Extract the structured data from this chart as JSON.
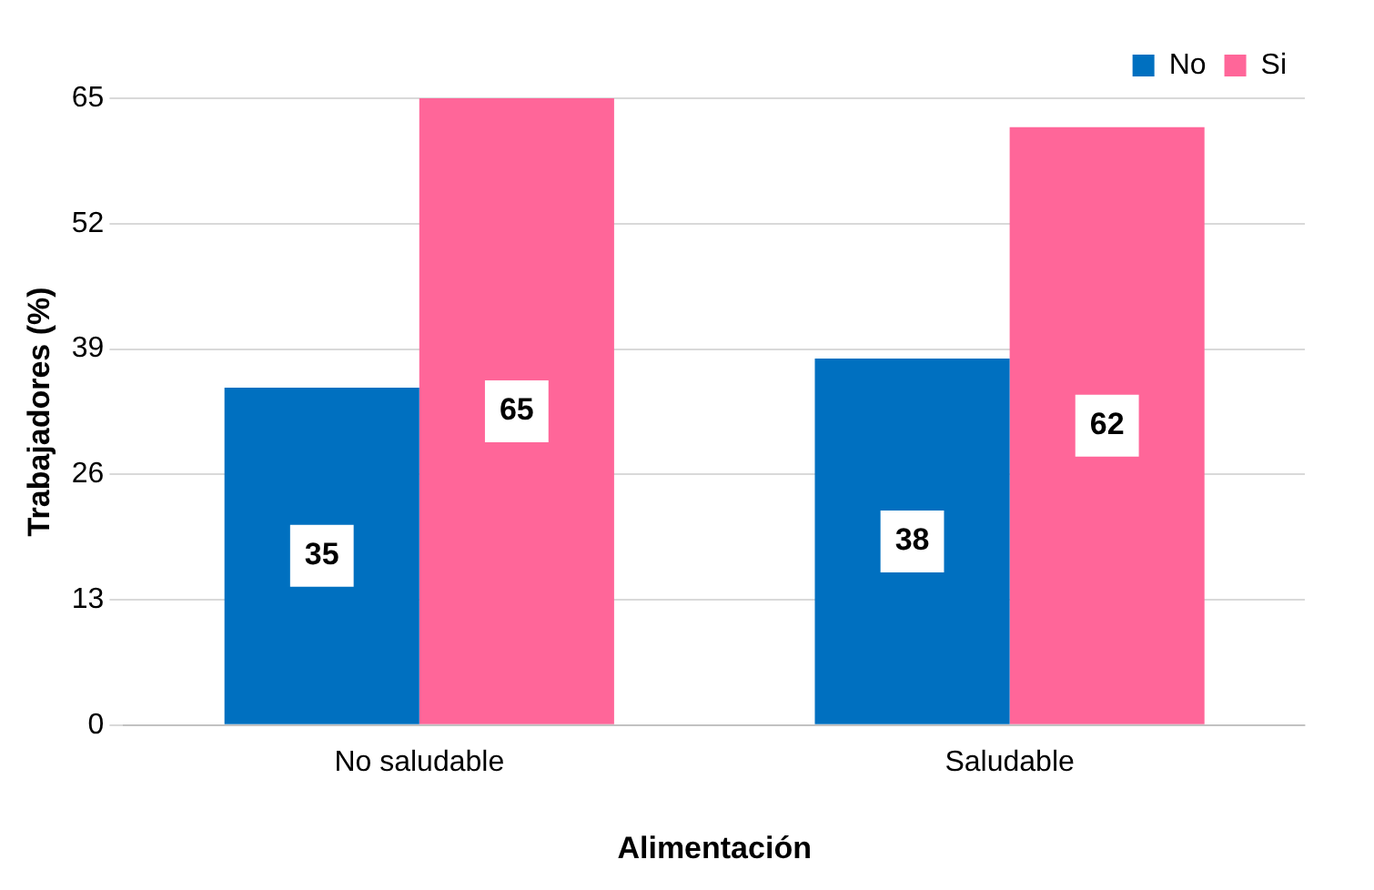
{
  "chart_data": {
    "type": "bar",
    "xlabel": "Alimentación",
    "ylabel": "Trabajadores (%)",
    "categories": [
      "No saludable",
      "Saludable"
    ],
    "series": [
      {
        "name": "No",
        "color": "#0070c0",
        "values": [
          35,
          38
        ]
      },
      {
        "name": "Si",
        "color": "#ff6699",
        "values": [
          65,
          62
        ]
      }
    ],
    "ylim": [
      0,
      65
    ],
    "yticks": [
      0,
      13,
      26,
      39,
      52,
      65
    ],
    "grid": "y",
    "legend": "top right",
    "data_labels": true
  }
}
